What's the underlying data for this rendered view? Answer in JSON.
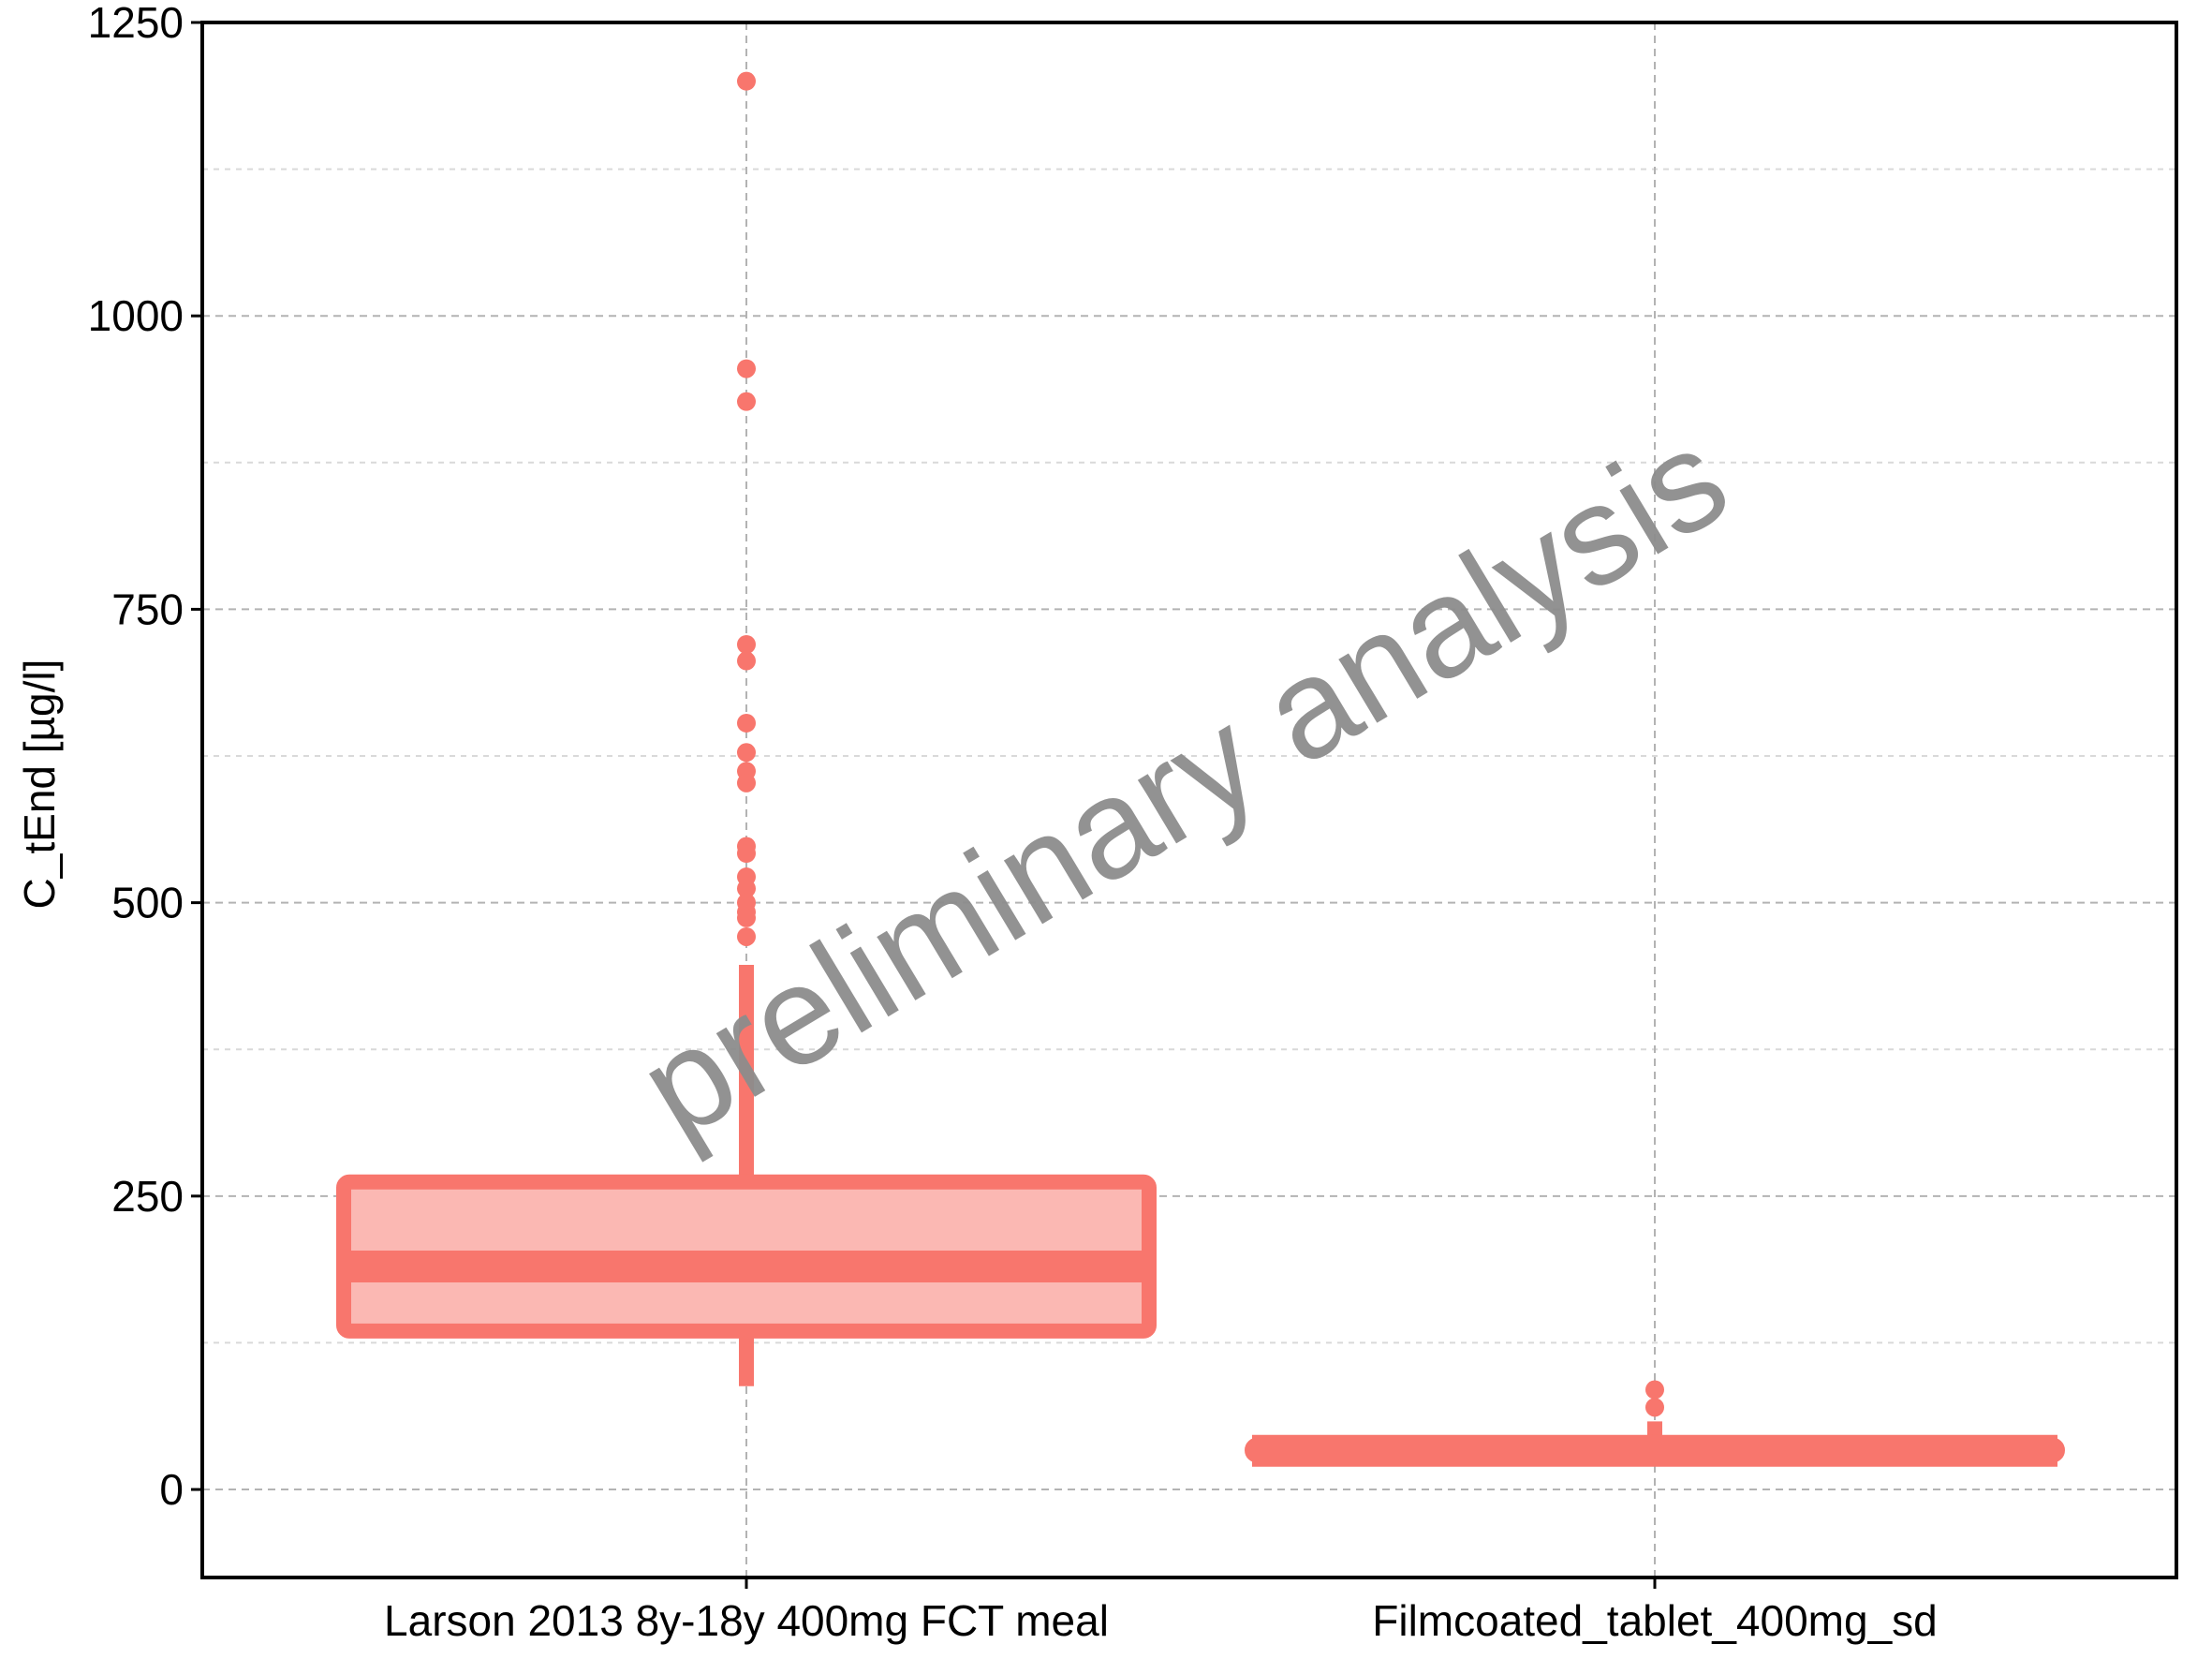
{
  "chart_data": {
    "type": "box",
    "title": "",
    "xlabel": "",
    "ylabel": "C_tEnd [µg/l]",
    "ylim": [
      -75,
      1250
    ],
    "yticks": [
      0,
      250,
      500,
      750,
      1000,
      1250
    ],
    "grid": true,
    "legend": "none",
    "watermark": "preliminary analysis",
    "colors": {
      "box_stroke": "#f8766d",
      "box_fill": "#fbb8b3",
      "outlier": "#f8766d",
      "grid_major": "#b3b3b3",
      "grid_minor": "#d9d9d9",
      "watermark": "#8c8c8c"
    },
    "categories": [
      "Larson 2013 8y-18y 400mg FCT meal",
      "Filmcoated_tablet_400mg_sd"
    ],
    "boxes": [
      {
        "category": "Larson 2013 8y-18y 400mg FCT meal",
        "whisker_low": 88,
        "q1": 135,
        "median": 190,
        "q3": 262,
        "whisker_high": 447,
        "outliers": [
          1200,
          955,
          927,
          720,
          706,
          653,
          628,
          612,
          602,
          548,
          542,
          522,
          512,
          500,
          492,
          487,
          471
        ]
      },
      {
        "category": "Filmcoated_tablet_400mg_sd",
        "whisker_low": 28,
        "q1": 29,
        "median": 33,
        "q3": 38,
        "whisker_high": 58,
        "outliers": [
          85,
          70
        ]
      }
    ]
  }
}
